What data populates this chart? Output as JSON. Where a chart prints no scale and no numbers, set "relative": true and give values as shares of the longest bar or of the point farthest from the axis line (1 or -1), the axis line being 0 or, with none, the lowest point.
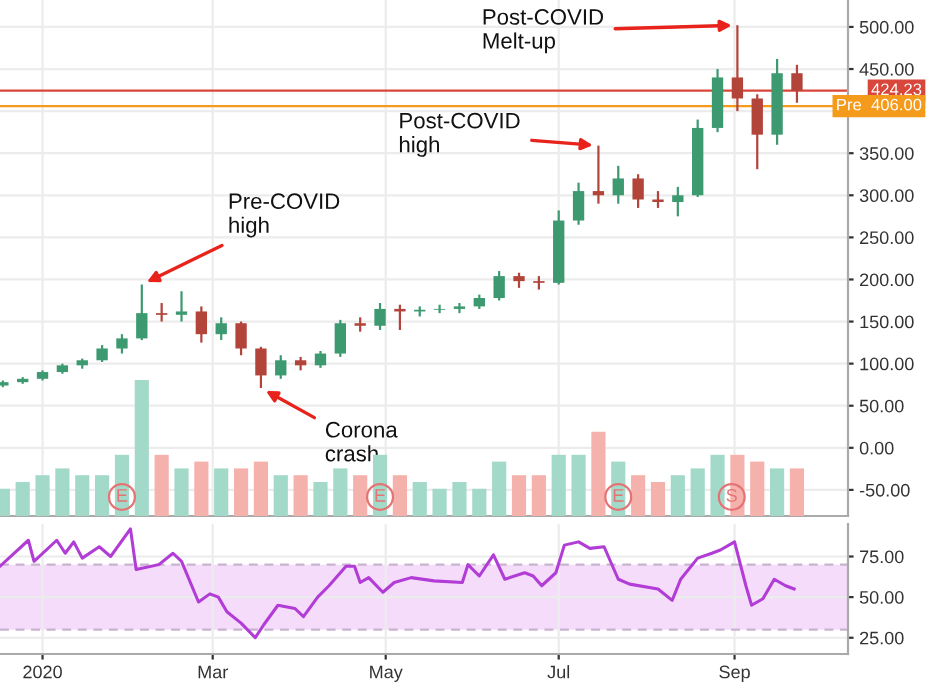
{
  "chart_data": [
    {
      "type": "candlestick",
      "x": [
        "2019-12-18",
        "2019-12-25",
        "2020-01-01",
        "2020-01-08",
        "2020-01-15",
        "2020-01-22",
        "2020-01-29",
        "2020-02-05",
        "2020-02-12",
        "2020-02-19",
        "2020-02-26",
        "2020-03-04",
        "2020-03-11",
        "2020-03-18",
        "2020-03-25",
        "2020-04-01",
        "2020-04-08",
        "2020-04-15",
        "2020-04-22",
        "2020-04-29",
        "2020-05-06",
        "2020-05-13",
        "2020-05-20",
        "2020-05-27",
        "2020-06-03",
        "2020-06-10",
        "2020-06-17",
        "2020-06-24",
        "2020-07-01",
        "2020-07-08",
        "2020-07-15",
        "2020-07-22",
        "2020-07-29",
        "2020-08-05",
        "2020-08-12",
        "2020-08-19",
        "2020-08-26",
        "2020-09-02",
        "2020-09-09",
        "2020-09-16",
        "2020-09-23"
      ],
      "ohlc": [
        [
          74,
          80,
          72,
          78
        ],
        [
          78,
          84,
          76,
          82
        ],
        [
          82,
          92,
          80,
          90
        ],
        [
          90,
          100,
          88,
          98
        ],
        [
          98,
          106,
          94,
          104
        ],
        [
          104,
          122,
          102,
          118
        ],
        [
          118,
          135,
          112,
          130
        ],
        [
          130,
          194,
          128,
          160
        ],
        [
          160,
          172,
          150,
          158
        ],
        [
          158,
          186,
          150,
          162
        ],
        [
          162,
          168,
          125,
          135
        ],
        [
          135,
          155,
          128,
          148
        ],
        [
          148,
          150,
          110,
          118
        ],
        [
          118,
          120,
          71,
          86
        ],
        [
          86,
          110,
          82,
          104
        ],
        [
          104,
          108,
          92,
          98
        ],
        [
          98,
          115,
          95,
          112
        ],
        [
          112,
          152,
          108,
          148
        ],
        [
          148,
          155,
          138,
          145
        ],
        [
          145,
          172,
          140,
          165
        ],
        [
          165,
          170,
          140,
          162
        ],
        [
          162,
          168,
          156,
          164
        ],
        [
          164,
          170,
          160,
          165
        ],
        [
          165,
          172,
          160,
          168
        ],
        [
          168,
          182,
          165,
          178
        ],
        [
          178,
          210,
          175,
          204
        ],
        [
          204,
          208,
          190,
          198
        ],
        [
          198,
          204,
          188,
          196
        ],
        [
          196,
          282,
          194,
          270
        ],
        [
          270,
          315,
          265,
          305
        ],
        [
          305,
          359,
          290,
          300
        ],
        [
          300,
          335,
          290,
          320
        ],
        [
          320,
          325,
          285,
          295
        ],
        [
          295,
          305,
          285,
          292
        ],
        [
          292,
          310,
          275,
          300
        ],
        [
          300,
          390,
          298,
          380
        ],
        [
          380,
          450,
          375,
          440
        ],
        [
          440,
          502,
          400,
          415
        ],
        [
          415,
          420,
          331,
          372
        ],
        [
          372,
          462,
          360,
          445
        ],
        [
          445,
          455,
          410,
          424.23
        ]
      ],
      "colors": [
        "#3d9970",
        "#3d9970",
        "#3d9970",
        "#3d9970",
        "#3d9970",
        "#3d9970",
        "#3d9970",
        "#3d9970",
        "#b2443a",
        "#3d9970",
        "#b2443a",
        "#3d9970",
        "#b2443a",
        "#b2443a",
        "#3d9970",
        "#b2443a",
        "#3d9970",
        "#3d9970",
        "#b2443a",
        "#3d9970",
        "#b2443a",
        "#3d9970",
        "#3d9970",
        "#3d9970",
        "#3d9970",
        "#3d9970",
        "#b2443a",
        "#b2443a",
        "#3d9970",
        "#3d9970",
        "#b2443a",
        "#3d9970",
        "#b2443a",
        "#b2443a",
        "#3d9970",
        "#3d9970",
        "#3d9970",
        "#b2443a",
        "#b2443a",
        "#3d9970",
        "#b2443a"
      ],
      "xlim": [
        "2019-12-17",
        "2020-10-11"
      ],
      "xticks": [
        {
          "value": "2020-01-01",
          "label": null
        },
        {
          "value": "2020-03-01",
          "label": null
        },
        {
          "value": "2020-05-01",
          "label": null
        },
        {
          "value": "2020-07-01",
          "label": null
        },
        {
          "value": "2020-09-01",
          "label": null
        }
      ],
      "ylim": [
        -81,
        532
      ],
      "yticks": [
        {
          "value": -50,
          "label": "-50.00"
        },
        {
          "value": 0,
          "label": "0.00"
        },
        {
          "value": 50,
          "label": "50.00"
        },
        {
          "value": 100,
          "label": "100.00"
        },
        {
          "value": 150,
          "label": "150.00"
        },
        {
          "value": 200,
          "label": "200.00"
        },
        {
          "value": 250,
          "label": "250.00"
        },
        {
          "value": 300,
          "label": "300.00"
        },
        {
          "value": 350,
          "label": "350.00"
        },
        {
          "value": 400,
          "label": null
        },
        {
          "value": 450,
          "label": "450.00"
        },
        {
          "value": 500,
          "label": "500.00"
        }
      ],
      "ref_lines": [
        {
          "axis": "y",
          "value": 424.23,
          "label": "424.23",
          "color": "#d9463b"
        },
        {
          "axis": "y",
          "value": 406,
          "label": "Pre  406.00",
          "color": "#f59b1c"
        }
      ],
      "annotations": [
        {
          "text": "Pre-COVID\nhigh",
          "x": "2020-02-05",
          "y": 194
        },
        {
          "text": "Corona\ncrash",
          "x": "2020-03-18",
          "y": 71
        },
        {
          "text": "Post-COVID\nhigh",
          "x": "2020-07-15",
          "y": 359
        },
        {
          "text": "Post-COVID\nMelt-up",
          "x": "2020-09-02",
          "y": 502
        }
      ],
      "tick_labels": "y",
      "grid": true
    },
    {
      "type": "bar",
      "relative": true,
      "x": [
        "2019-12-18",
        "2019-12-25",
        "2020-01-01",
        "2020-01-08",
        "2020-01-15",
        "2020-01-22",
        "2020-01-29",
        "2020-02-05",
        "2020-02-12",
        "2020-02-19",
        "2020-02-26",
        "2020-03-04",
        "2020-03-11",
        "2020-03-18",
        "2020-03-25",
        "2020-04-01",
        "2020-04-08",
        "2020-04-15",
        "2020-04-22",
        "2020-04-29",
        "2020-05-06",
        "2020-05-13",
        "2020-05-20",
        "2020-05-27",
        "2020-06-03",
        "2020-06-10",
        "2020-06-17",
        "2020-06-24",
        "2020-07-01",
        "2020-07-08",
        "2020-07-15",
        "2020-07-22",
        "2020-07-29",
        "2020-08-05",
        "2020-08-12",
        "2020-08-19",
        "2020-08-26",
        "2020-09-02",
        "2020-09-09",
        "2020-09-16",
        "2020-09-23"
      ],
      "values": [
        0.2,
        0.25,
        0.3,
        0.35,
        0.3,
        0.3,
        0.45,
        1,
        0.45,
        0.35,
        0.4,
        0.35,
        0.35,
        0.4,
        0.3,
        0.3,
        0.25,
        0.35,
        0.3,
        0.45,
        0.3,
        0.25,
        0.2,
        0.25,
        0.2,
        0.4,
        0.3,
        0.3,
        0.45,
        0.45,
        0.62,
        0.4,
        0.3,
        0.25,
        0.3,
        0.35,
        0.45,
        0.45,
        0.4,
        0.35,
        0.35
      ],
      "colors": [
        "#a3d9c9",
        "#a3d9c9",
        "#a3d9c9",
        "#a3d9c9",
        "#a3d9c9",
        "#a3d9c9",
        "#a3d9c9",
        "#a3d9c9",
        "#f5b2ad",
        "#a3d9c9",
        "#f5b2ad",
        "#a3d9c9",
        "#f5b2ad",
        "#f5b2ad",
        "#a3d9c9",
        "#f5b2ad",
        "#a3d9c9",
        "#a3d9c9",
        "#f5b2ad",
        "#a3d9c9",
        "#f5b2ad",
        "#a3d9c9",
        "#a3d9c9",
        "#a3d9c9",
        "#a3d9c9",
        "#a3d9c9",
        "#f5b2ad",
        "#f5b2ad",
        "#a3d9c9",
        "#a3d9c9",
        "#f5b2ad",
        "#a3d9c9",
        "#f5b2ad",
        "#f5b2ad",
        "#a3d9c9",
        "#a3d9c9",
        "#a3d9c9",
        "#f5b2ad",
        "#f5b2ad",
        "#a3d9c9",
        "#f5b2ad"
      ],
      "xlim": [
        "2019-12-17",
        "2020-10-11"
      ],
      "annotations": [
        {
          "text": "E",
          "x": "2020-01-29"
        },
        {
          "text": "E",
          "x": "2020-04-29"
        },
        {
          "text": "E",
          "x": "2020-07-22"
        },
        {
          "text": "S",
          "x": "2020-08-31"
        }
      ],
      "tick_labels": false
    },
    {
      "type": "line",
      "series": [
        {
          "color": "#b23cd6",
          "x": [
            "2019-12-17",
            "2019-12-27",
            "2019-12-29",
            "2020-01-06",
            "2020-01-09",
            "2020-01-12",
            "2020-01-15",
            "2020-01-21",
            "2020-01-25",
            "2020-02-01",
            "2020-02-03",
            "2020-02-11",
            "2020-02-16",
            "2020-02-19",
            "2020-02-25",
            "2020-02-29",
            "2020-03-03",
            "2020-03-06",
            "2020-03-11",
            "2020-03-16",
            "2020-03-19",
            "2020-03-24",
            "2020-03-30",
            "2020-04-02",
            "2020-04-07",
            "2020-04-11",
            "2020-04-17",
            "2020-04-20",
            "2020-04-22",
            "2020-04-25",
            "2020-04-30",
            "2020-05-04",
            "2020-05-10",
            "2020-05-18",
            "2020-05-28",
            "2020-05-30",
            "2020-06-03",
            "2020-06-08",
            "2020-06-12",
            "2020-06-19",
            "2020-06-22",
            "2020-06-25",
            "2020-06-30",
            "2020-07-03",
            "2020-07-08",
            "2020-07-12",
            "2020-07-17",
            "2020-07-22",
            "2020-07-26",
            "2020-08-05",
            "2020-08-10",
            "2020-08-13",
            "2020-08-19",
            "2020-08-24",
            "2020-08-27",
            "2020-09-01",
            "2020-09-05",
            "2020-09-07",
            "2020-09-11",
            "2020-09-15",
            "2020-09-19",
            "2020-09-22"
          ],
          "values": [
            69,
            85,
            72,
            85,
            77,
            84,
            74,
            81,
            75,
            92,
            67,
            70,
            77,
            72,
            47,
            52,
            50,
            41,
            34,
            25,
            33,
            45,
            43,
            38,
            50,
            57,
            69,
            69,
            59,
            62,
            53,
            59,
            62,
            60,
            59,
            70,
            63,
            76,
            61,
            65,
            63,
            57,
            65,
            82,
            84,
            80,
            81,
            61,
            58,
            55,
            48,
            61,
            74,
            77,
            79,
            84,
            57,
            45,
            49,
            61,
            57,
            55
          ]
        }
      ],
      "xlim": [
        "2019-12-17",
        "2020-10-11"
      ],
      "xticks": [
        {
          "value": "2020-01-01",
          "label": "2020"
        },
        {
          "value": "2020-03-01",
          "label": "Mar"
        },
        {
          "value": "2020-05-01",
          "label": "May"
        },
        {
          "value": "2020-07-01",
          "label": "Jul"
        },
        {
          "value": "2020-09-01",
          "label": "Sep"
        }
      ],
      "ylim": [
        15,
        95
      ],
      "yticks": [
        {
          "value": 25,
          "label": "25.00"
        },
        {
          "value": 50,
          "label": "50.00"
        },
        {
          "value": 75,
          "label": "75.00"
        }
      ],
      "bands": [
        {
          "axis": "y",
          "from": 30,
          "to": 70,
          "color": "#f5dcfb"
        }
      ],
      "ref_lines": [
        {
          "axis": "y",
          "value": 70,
          "line_style": "dashed",
          "color": "#c9b3cf"
        },
        {
          "axis": "y",
          "value": 30,
          "line_style": "dashed",
          "color": "#c9b3cf"
        }
      ],
      "grid": true
    }
  ]
}
